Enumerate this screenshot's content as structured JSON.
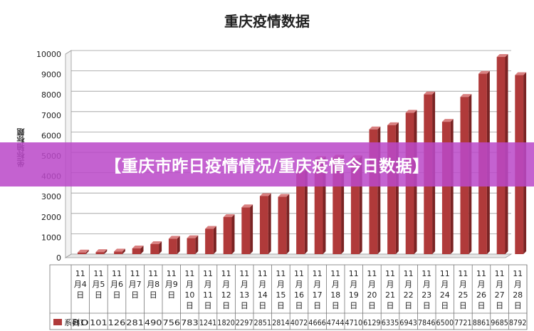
{
  "chart_data": {
    "type": "bar",
    "title": "重庆疫情数据",
    "ylabel": "坐标轴标题",
    "ylim": [
      0,
      10000
    ],
    "yticks": [
      0,
      1000,
      2000,
      3000,
      4000,
      5000,
      6000,
      7000,
      8000,
      9000,
      10000
    ],
    "categories": [
      "11月4日",
      "11月5日",
      "11月6日",
      "11月7日",
      "11月8日",
      "11月9日",
      "11月10日",
      "11月11日",
      "11月12日",
      "11月13日",
      "11月14日",
      "11月15日",
      "11月16日",
      "11月17日",
      "11月18日",
      "11月19日",
      "11月20日",
      "11月21日",
      "11月22日",
      "11月23日",
      "11月24日",
      "11月25日",
      "11月26日",
      "11月27日",
      "11月28日"
    ],
    "category_lines": [
      [
        "11",
        "月4",
        "日"
      ],
      [
        "11",
        "月5",
        "日"
      ],
      [
        "11",
        "月6",
        "日"
      ],
      [
        "11",
        "月7",
        "日"
      ],
      [
        "11",
        "月8",
        "日"
      ],
      [
        "11",
        "月9",
        "日"
      ],
      [
        "11",
        "月",
        "10",
        "日"
      ],
      [
        "11",
        "月",
        "11",
        "日"
      ],
      [
        "11",
        "月",
        "12",
        "日"
      ],
      [
        "11",
        "月",
        "13",
        "日"
      ],
      [
        "11",
        "月",
        "14",
        "日"
      ],
      [
        "11",
        "月",
        "15",
        "日"
      ],
      [
        "11",
        "月",
        "16",
        "日"
      ],
      [
        "11",
        "月",
        "17",
        "日"
      ],
      [
        "11",
        "月",
        "18",
        "日"
      ],
      [
        "11",
        "月",
        "19",
        "日"
      ],
      [
        "11",
        "月",
        "20",
        "日"
      ],
      [
        "11",
        "月",
        "21",
        "日"
      ],
      [
        "11",
        "月",
        "22",
        "日"
      ],
      [
        "11",
        "月",
        "23",
        "日"
      ],
      [
        "11",
        "月",
        "24",
        "日"
      ],
      [
        "11",
        "月",
        "25",
        "日"
      ],
      [
        "11",
        "月",
        "26",
        "日"
      ],
      [
        "11",
        "月",
        "27",
        "日"
      ],
      [
        "11",
        "月",
        "28",
        "日"
      ]
    ],
    "series": [
      {
        "name": "系列1",
        "color": "#b03a3a",
        "values": [
          80,
          101,
          126,
          281,
          490,
          756,
          783,
          1241,
          1820,
          2297,
          2851,
          2814,
          4072,
          4666,
          4744,
          4710,
          6129,
          6335,
          6943,
          7846,
          6500,
          7721,
          8861,
          9685,
          8792
        ]
      }
    ],
    "table_values_shown": [
      "80",
      "101",
      "126",
      "281",
      "490",
      "756",
      "783",
      "1241",
      "1820",
      "2297",
      "2851",
      "2814",
      "4072",
      "4666",
      "4744",
      "4710",
      "6129",
      "6335",
      "6943",
      "7846",
      "6500",
      "7721",
      "8861",
      "9685",
      "8792"
    ],
    "grid": true
  },
  "banner": {
    "text": "【重庆市昨日疫情情况/重庆疫情今日数据】"
  }
}
